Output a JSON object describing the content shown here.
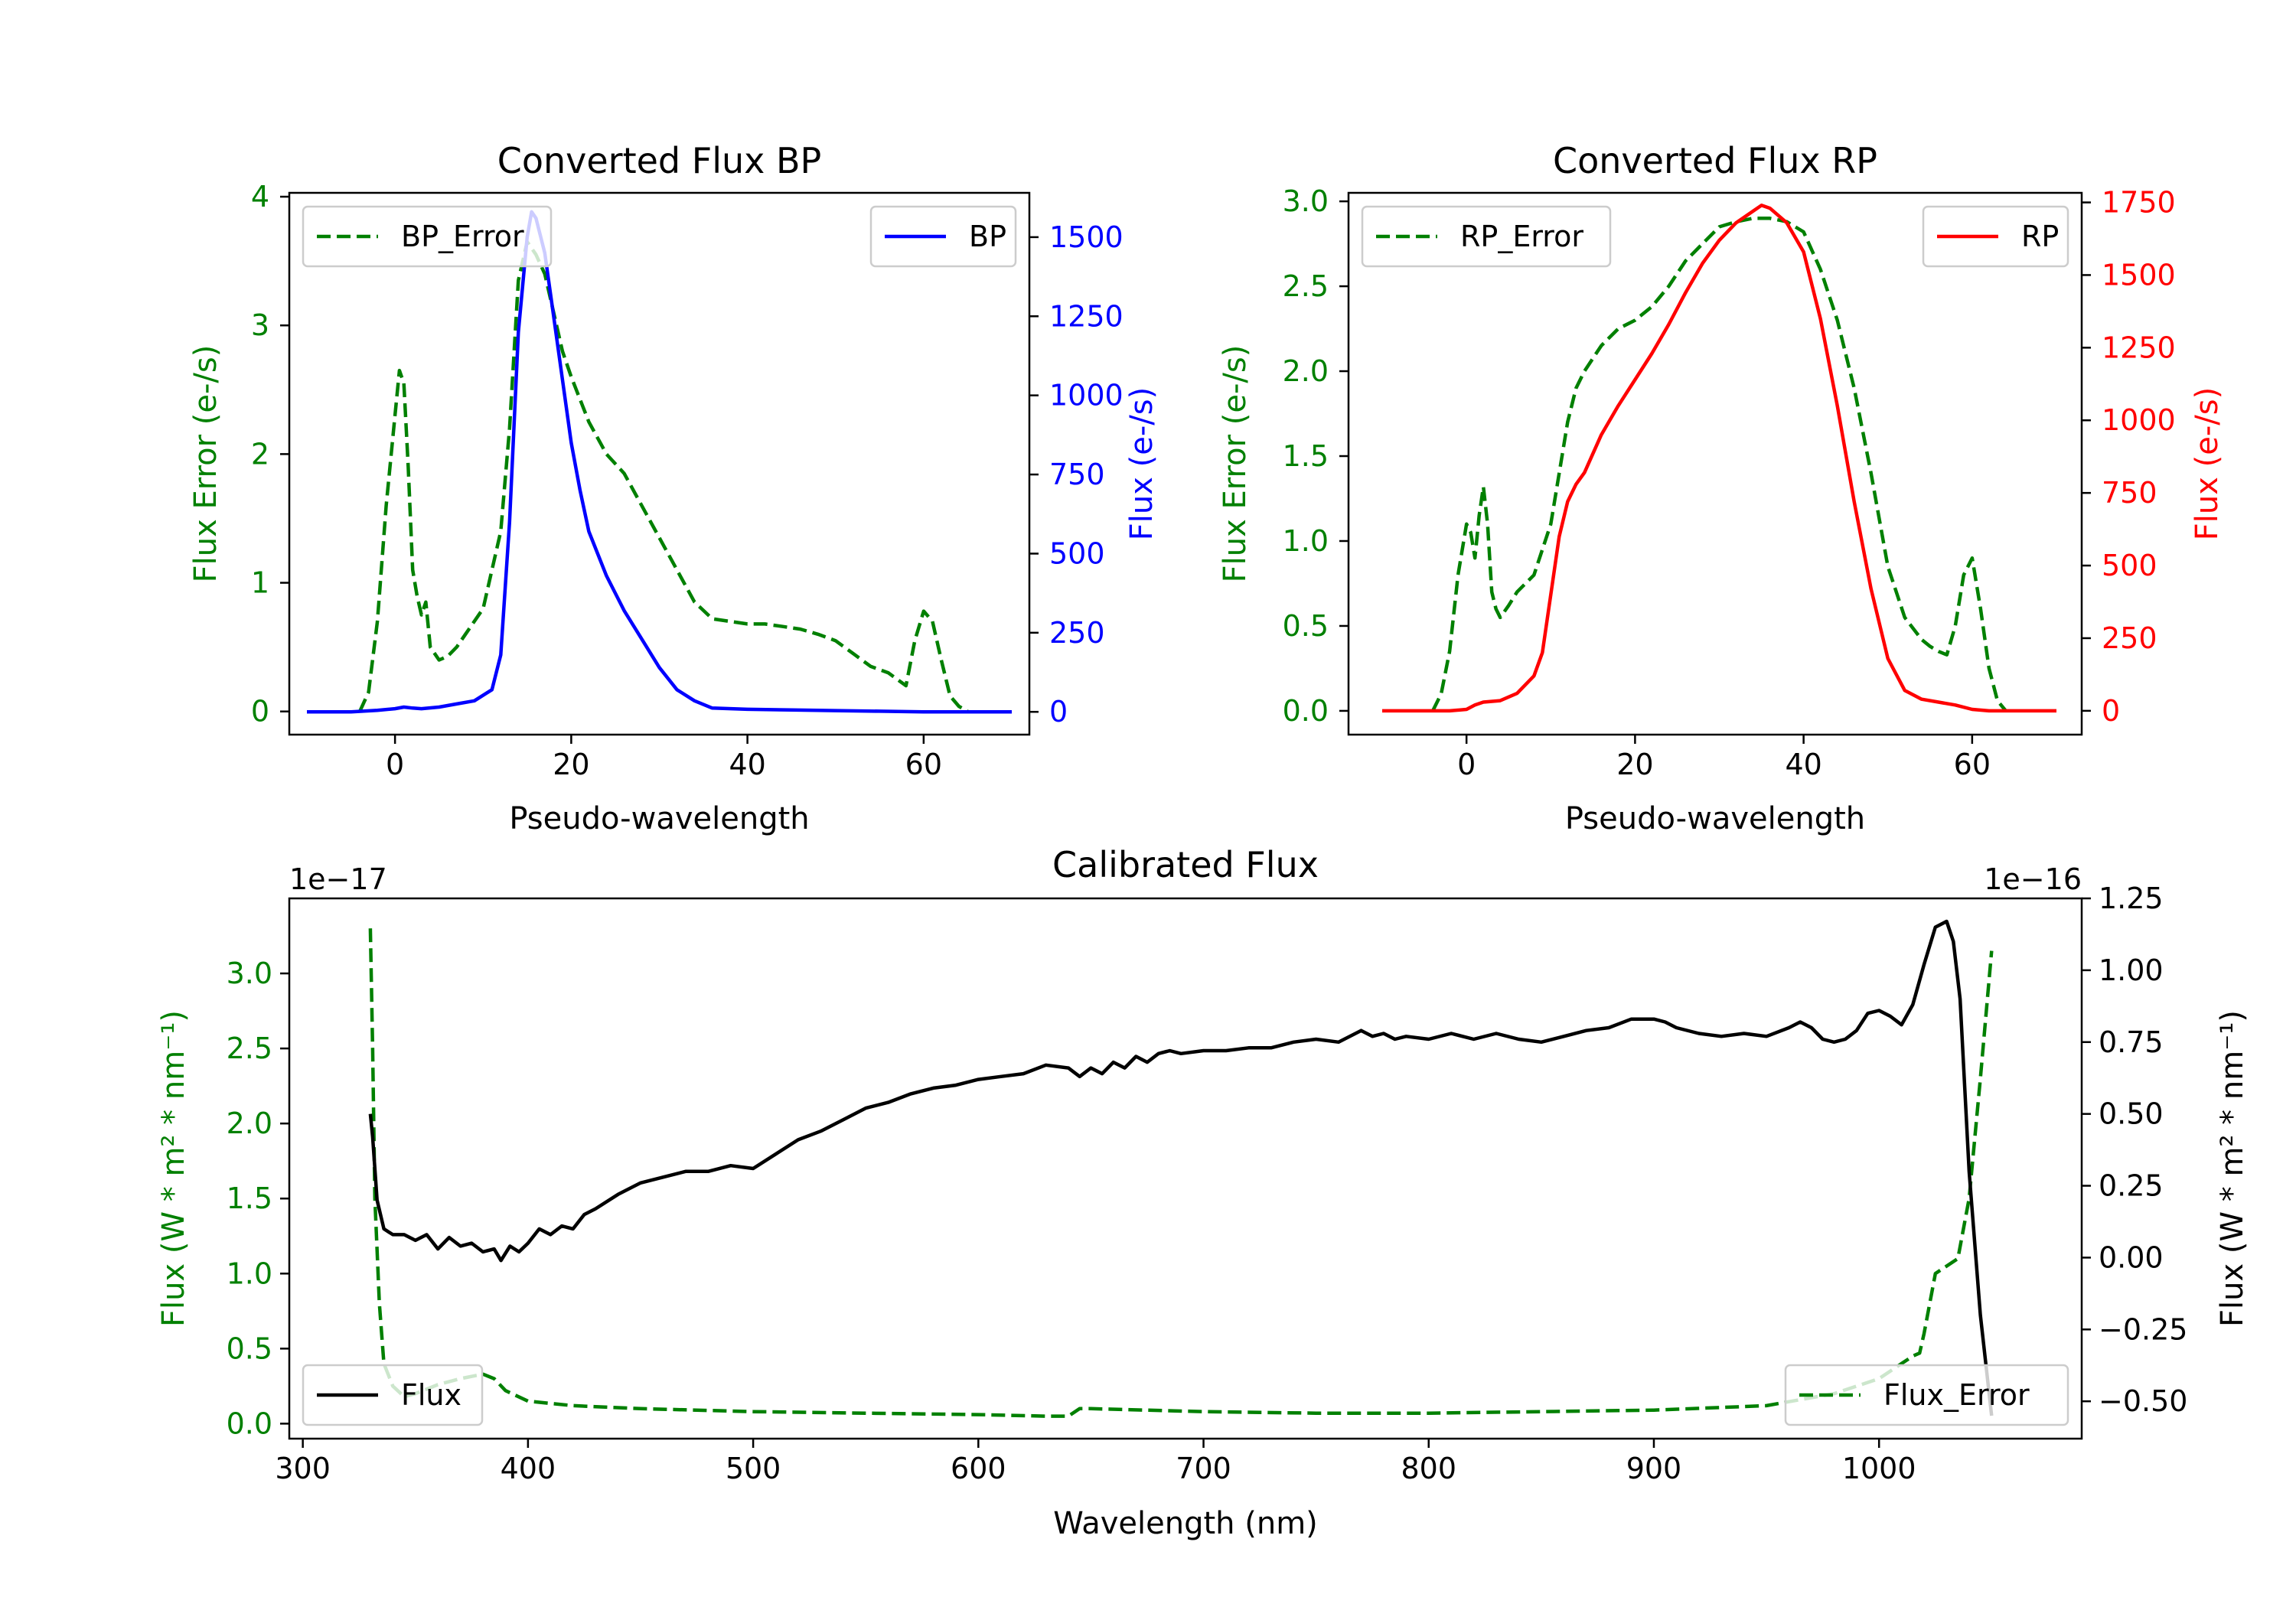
{
  "colors": {
    "error": "#008000",
    "bp": "#0000ff",
    "rp": "#ff0000",
    "flux": "#000000",
    "axis": "#000000",
    "legend_border": "#cccccc"
  },
  "chart_data": [
    {
      "id": "bp",
      "type": "line",
      "title": "Converted Flux BP",
      "xlabel": "Pseudo-wavelength",
      "ylabel_left": "Flux Error (e-/s)",
      "ylabel_right": "Flux (e-/s)",
      "xlim": [
        -12,
        72
      ],
      "ylim_left": [
        -0.18,
        4.03
      ],
      "ylim_right": [
        -72,
        1640
      ],
      "xticks": [
        0,
        20,
        40,
        60
      ],
      "xtick_labels": [
        "0",
        "20",
        "40",
        "60"
      ],
      "yticks_left": [
        0,
        1,
        2,
        3,
        4
      ],
      "ytick_labels_left": [
        "0",
        "1",
        "2",
        "3",
        "4"
      ],
      "yticks_right": [
        0,
        250,
        500,
        750,
        1000,
        1250,
        1500
      ],
      "ytick_labels_right": [
        "0",
        "250",
        "500",
        "750",
        "1000",
        "1250",
        "1500"
      ],
      "legend_left": "BP_Error",
      "legend_right": "BP",
      "legend_left_loc": "upper left",
      "legend_right_loc": "upper right",
      "series": [
        {
          "name": "BP_Error",
          "axis": "left",
          "style": "dashed",
          "color": "#008000",
          "x": [
            -4,
            -3,
            -2,
            -1,
            0,
            0.5,
            1,
            1.5,
            2,
            2.5,
            3,
            3.5,
            4,
            5,
            6,
            7,
            8,
            10,
            12,
            13,
            14,
            15,
            16,
            17,
            18,
            19,
            20,
            22,
            24,
            26,
            28,
            30,
            32,
            34,
            36,
            38,
            40,
            42,
            44,
            46,
            48,
            50,
            52,
            54,
            56,
            57,
            58,
            59,
            60,
            61,
            62,
            63,
            64,
            65
          ],
          "y": [
            0,
            0.15,
            0.7,
            1.6,
            2.3,
            2.65,
            2.55,
            1.9,
            1.1,
            0.9,
            0.75,
            0.85,
            0.5,
            0.4,
            0.43,
            0.5,
            0.6,
            0.8,
            1.4,
            2.2,
            3.35,
            3.65,
            3.55,
            3.4,
            3.1,
            2.8,
            2.6,
            2.25,
            2.0,
            1.85,
            1.6,
            1.35,
            1.1,
            0.85,
            0.72,
            0.7,
            0.68,
            0.68,
            0.66,
            0.64,
            0.6,
            0.55,
            0.45,
            0.35,
            0.3,
            0.25,
            0.2,
            0.55,
            0.78,
            0.7,
            0.4,
            0.12,
            0.04,
            0
          ]
        },
        {
          "name": "BP",
          "axis": "right",
          "style": "solid",
          "color": "#0000ff",
          "x": [
            -10,
            -5,
            -2,
            0,
            1,
            2,
            3,
            5,
            7,
            9,
            11,
            12,
            13,
            14,
            15,
            15.5,
            16,
            17,
            18,
            19,
            20,
            21,
            22,
            24,
            26,
            28,
            30,
            32,
            34,
            36,
            40,
            45,
            50,
            55,
            60,
            65,
            70
          ],
          "y": [
            0,
            0,
            5,
            10,
            15,
            12,
            10,
            15,
            25,
            35,
            70,
            180,
            600,
            1200,
            1500,
            1580,
            1560,
            1450,
            1250,
            1050,
            850,
            700,
            570,
            430,
            320,
            230,
            140,
            70,
            35,
            12,
            8,
            6,
            4,
            2,
            0,
            0,
            0
          ]
        }
      ]
    },
    {
      "id": "rp",
      "type": "line",
      "title": "Converted Flux RP",
      "xlabel": "Pseudo-wavelength",
      "ylabel_left": "Flux Error (e-/s)",
      "ylabel_right": "Flux (e-/s)",
      "xlim": [
        -14,
        73
      ],
      "ylim_left": [
        -0.14,
        3.05
      ],
      "ylim_right": [
        -82,
        1783
      ],
      "xticks": [
        0,
        20,
        40,
        60
      ],
      "xtick_labels": [
        "0",
        "20",
        "40",
        "60"
      ],
      "yticks_left": [
        0,
        0.5,
        1,
        1.5,
        2,
        2.5,
        3
      ],
      "ytick_labels_left": [
        "0.0",
        "0.5",
        "1.0",
        "1.5",
        "2.0",
        "2.5",
        "3.0"
      ],
      "yticks_right": [
        0,
        250,
        500,
        750,
        1000,
        1250,
        1500,
        1750
      ],
      "ytick_labels_right": [
        "0",
        "250",
        "500",
        "750",
        "1000",
        "1250",
        "1500",
        "1750"
      ],
      "legend_left": "RP_Error",
      "legend_right": "RP",
      "legend_left_loc": "upper left",
      "legend_right_loc": "upper right",
      "series": [
        {
          "name": "RP_Error",
          "axis": "left",
          "style": "dashed",
          "color": "#008000",
          "x": [
            -4,
            -3,
            -2,
            -1,
            0,
            0.5,
            1,
            1.5,
            2,
            2.5,
            3,
            3.5,
            4,
            5,
            6,
            8,
            10,
            11,
            12,
            13,
            14,
            16,
            18,
            20,
            22,
            24,
            26,
            28,
            30,
            32,
            34,
            36,
            38,
            40,
            42,
            44,
            46,
            48,
            50,
            52,
            54,
            55,
            56,
            57,
            58,
            59,
            60,
            61,
            62,
            63,
            64
          ],
          "y": [
            0,
            0.1,
            0.35,
            0.8,
            1.1,
            1.05,
            0.9,
            1.15,
            1.32,
            1.1,
            0.7,
            0.6,
            0.55,
            0.62,
            0.7,
            0.8,
            1.1,
            1.4,
            1.7,
            1.9,
            2.0,
            2.15,
            2.25,
            2.3,
            2.38,
            2.5,
            2.65,
            2.75,
            2.85,
            2.88,
            2.9,
            2.9,
            2.88,
            2.82,
            2.6,
            2.3,
            1.9,
            1.4,
            0.85,
            0.55,
            0.42,
            0.38,
            0.35,
            0.33,
            0.5,
            0.8,
            0.9,
            0.6,
            0.25,
            0.06,
            0
          ]
        },
        {
          "name": "RP",
          "axis": "right",
          "style": "solid",
          "color": "#ff0000",
          "x": [
            -10,
            -5,
            -2,
            0,
            1,
            2,
            4,
            6,
            8,
            9,
            10,
            11,
            12,
            13,
            14,
            16,
            18,
            20,
            22,
            24,
            26,
            28,
            30,
            32,
            34,
            35,
            36,
            38,
            40,
            42,
            44,
            46,
            48,
            50,
            52,
            54,
            56,
            58,
            60,
            62,
            65,
            70
          ],
          "y": [
            0,
            0,
            0,
            5,
            20,
            30,
            35,
            60,
            120,
            200,
            400,
            600,
            720,
            780,
            820,
            950,
            1050,
            1140,
            1230,
            1330,
            1440,
            1540,
            1620,
            1680,
            1720,
            1740,
            1730,
            1680,
            1580,
            1350,
            1050,
            720,
            420,
            180,
            70,
            40,
            30,
            20,
            5,
            0,
            0,
            0
          ]
        }
      ]
    },
    {
      "id": "cal",
      "type": "line",
      "title": "Calibrated Flux",
      "xlabel": "Wavelength (nm)",
      "ylabel_left": "Flux (W * m² * nm⁻¹)",
      "ylabel_right": "Flux (W * m² * nm⁻¹)",
      "offset_left": "1e−17",
      "offset_right": "1e−16",
      "xlim": [
        294,
        1090
      ],
      "ylim_left": [
        -0.1,
        3.5
      ],
      "ylim_right": [
        -0.63,
        1.25
      ],
      "xticks": [
        300,
        400,
        500,
        600,
        700,
        800,
        900,
        1000
      ],
      "xtick_labels": [
        "300",
        "400",
        "500",
        "600",
        "700",
        "800",
        "900",
        "1000"
      ],
      "yticks_left": [
        0,
        0.5,
        1,
        1.5,
        2,
        2.5,
        3
      ],
      "ytick_labels_left": [
        "0.0",
        "0.5",
        "1.0",
        "1.5",
        "2.0",
        "2.5",
        "3.0"
      ],
      "yticks_right": [
        -0.5,
        -0.25,
        0,
        0.25,
        0.5,
        0.75,
        1,
        1.25
      ],
      "ytick_labels_right": [
        "−0.50",
        "−0.25",
        "0.00",
        "0.25",
        "0.50",
        "0.75",
        "1.00",
        "1.25"
      ],
      "legend_left": "Flux",
      "legend_right": "Flux_Error",
      "legend_left_loc": "lower left",
      "legend_right_loc": "lower right",
      "series": [
        {
          "name": "Flux_Error",
          "axis": "left",
          "style": "dashed",
          "color": "#008000",
          "x": [
            330,
            331,
            332,
            334,
            336,
            340,
            345,
            350,
            360,
            370,
            380,
            385,
            390,
            400,
            420,
            450,
            500,
            550,
            600,
            630,
            640,
            645,
            650,
            700,
            750,
            800,
            850,
            900,
            950,
            980,
            1000,
            1005,
            1010,
            1015,
            1018,
            1020,
            1025,
            1030,
            1035,
            1040,
            1045,
            1050
          ],
          "y": [
            3.3,
            2.5,
            1.5,
            0.8,
            0.4,
            0.25,
            0.18,
            0.2,
            0.26,
            0.3,
            0.33,
            0.3,
            0.22,
            0.15,
            0.12,
            0.1,
            0.08,
            0.07,
            0.06,
            0.05,
            0.05,
            0.1,
            0.1,
            0.08,
            0.07,
            0.07,
            0.08,
            0.09,
            0.12,
            0.2,
            0.3,
            0.35,
            0.4,
            0.45,
            0.47,
            0.6,
            1.0,
            1.05,
            1.1,
            1.5,
            2.3,
            3.15
          ]
        },
        {
          "name": "Flux",
          "axis": "right",
          "style": "solid",
          "color": "#000000",
          "x": [
            330,
            331,
            333,
            336,
            340,
            345,
            350,
            355,
            360,
            365,
            370,
            375,
            380,
            385,
            388,
            392,
            396,
            400,
            405,
            410,
            415,
            420,
            425,
            430,
            440,
            450,
            460,
            470,
            480,
            490,
            500,
            510,
            520,
            530,
            540,
            550,
            560,
            570,
            580,
            590,
            600,
            610,
            620,
            630,
            640,
            645,
            650,
            655,
            660,
            665,
            670,
            675,
            680,
            685,
            690,
            700,
            710,
            720,
            730,
            740,
            750,
            760,
            770,
            775,
            780,
            785,
            790,
            800,
            810,
            820,
            830,
            840,
            850,
            860,
            870,
            880,
            890,
            900,
            905,
            910,
            920,
            930,
            940,
            950,
            960,
            965,
            970,
            975,
            980,
            985,
            990,
            995,
            1000,
            1005,
            1010,
            1015,
            1020,
            1025,
            1030,
            1033,
            1036,
            1040,
            1045,
            1050
          ],
          "y": [
            0.5,
            0.42,
            0.2,
            0.1,
            0.08,
            0.08,
            0.06,
            0.08,
            0.03,
            0.07,
            0.04,
            0.05,
            0.02,
            0.03,
            -0.01,
            0.04,
            0.02,
            0.05,
            0.1,
            0.08,
            0.11,
            0.1,
            0.15,
            0.17,
            0.22,
            0.26,
            0.28,
            0.3,
            0.3,
            0.32,
            0.31,
            0.36,
            0.41,
            0.44,
            0.48,
            0.52,
            0.54,
            0.57,
            0.59,
            0.6,
            0.62,
            0.63,
            0.64,
            0.67,
            0.66,
            0.63,
            0.66,
            0.64,
            0.68,
            0.66,
            0.7,
            0.68,
            0.71,
            0.72,
            0.71,
            0.72,
            0.72,
            0.73,
            0.73,
            0.75,
            0.76,
            0.75,
            0.79,
            0.77,
            0.78,
            0.76,
            0.77,
            0.76,
            0.78,
            0.76,
            0.78,
            0.76,
            0.75,
            0.77,
            0.79,
            0.8,
            0.83,
            0.83,
            0.82,
            0.8,
            0.78,
            0.77,
            0.78,
            0.77,
            0.8,
            0.82,
            0.8,
            0.76,
            0.75,
            0.76,
            0.79,
            0.85,
            0.86,
            0.84,
            0.81,
            0.88,
            1.02,
            1.15,
            1.17,
            1.1,
            0.9,
            0.3,
            -0.2,
            -0.55
          ]
        }
      ]
    }
  ]
}
